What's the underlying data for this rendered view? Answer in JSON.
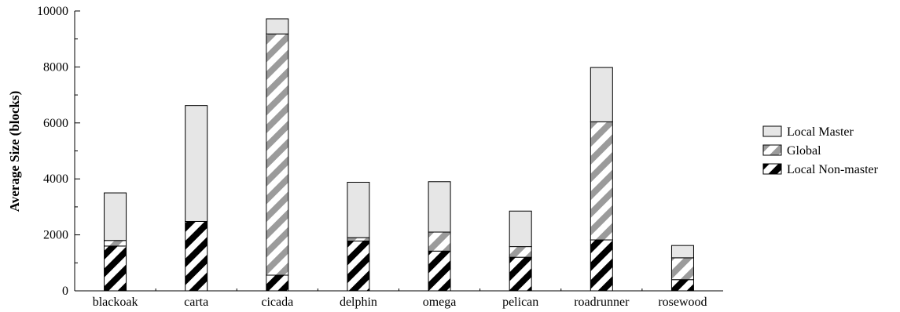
{
  "chart_data": {
    "type": "bar",
    "stacked": true,
    "title": "",
    "xlabel": "",
    "ylabel": "Average Size (blocks)",
    "ylim": [
      0,
      10000
    ],
    "yticks": [
      0,
      2000,
      4000,
      6000,
      8000,
      10000
    ],
    "categories": [
      "blackoak",
      "carta",
      "cicada",
      "delphin",
      "omega",
      "pelican",
      "roadrunner",
      "rosewood"
    ],
    "series": [
      {
        "name": "Local Non-master",
        "pattern": "black-stripes",
        "values": [
          1600,
          2480,
          560,
          1780,
          1420,
          1200,
          1820,
          400
        ]
      },
      {
        "name": "Global",
        "pattern": "gray-stripes",
        "values": [
          200,
          0,
          8620,
          120,
          680,
          380,
          4220,
          780
        ]
      },
      {
        "name": "Local Master",
        "pattern": "solid-light",
        "values": [
          1700,
          4140,
          540,
          1980,
          1800,
          1270,
          1940,
          440
        ]
      }
    ],
    "legend": {
      "placement": "right",
      "order": [
        "Local Master",
        "Global",
        "Local Non-master"
      ]
    },
    "grid": false,
    "colors": {
      "light_fill": "#e6e6e6",
      "gray_stripe": "#9b9b9b",
      "black_stripe": "#000000"
    }
  }
}
